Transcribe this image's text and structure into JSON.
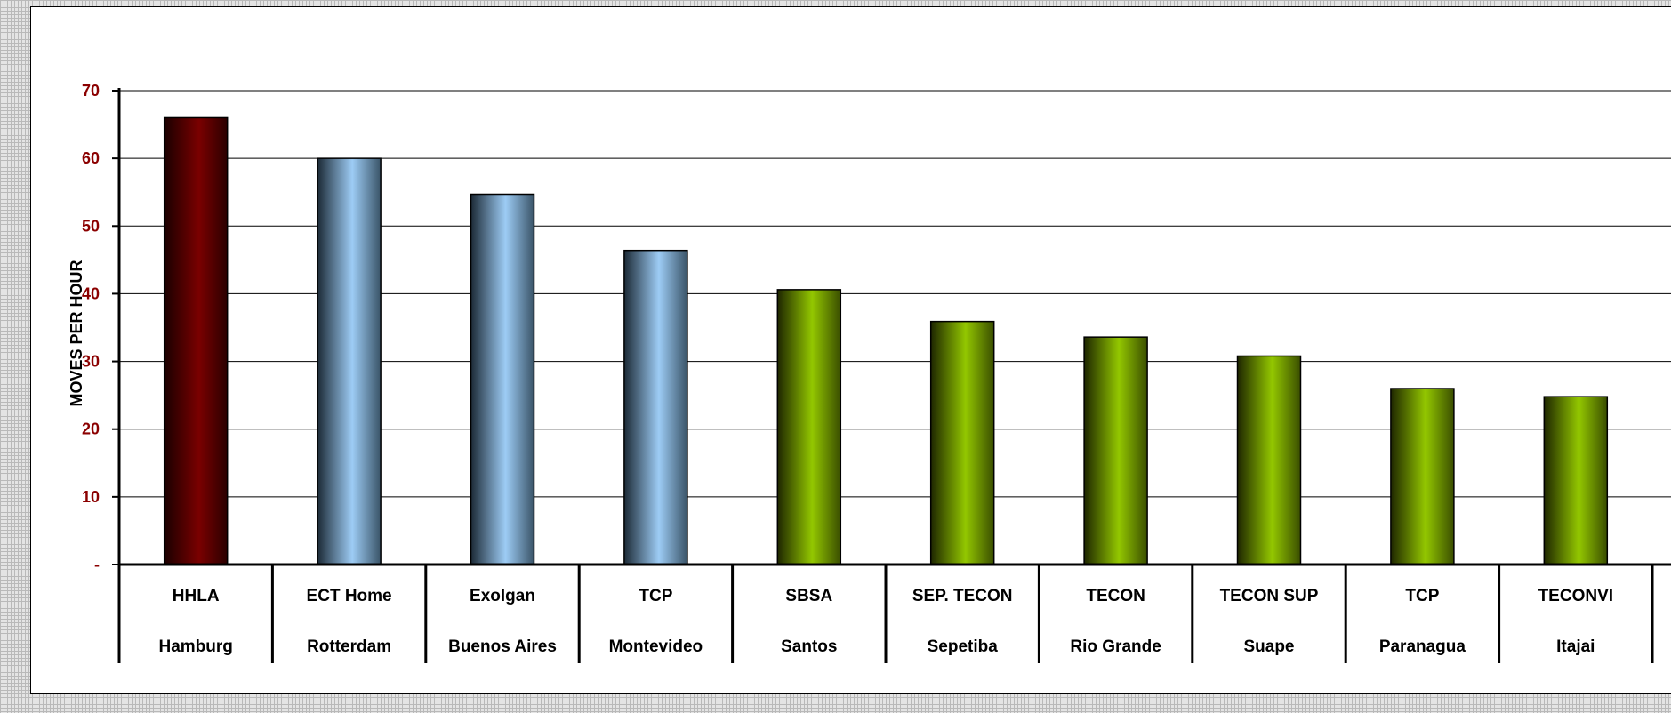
{
  "chart_data": {
    "type": "bar",
    "title": "",
    "xlabel": "",
    "ylabel": "MOVES PER HOUR",
    "ylim": [
      0,
      70
    ],
    "yticks": [
      0,
      10,
      20,
      30,
      40,
      50,
      60,
      70
    ],
    "ytick_labels": [
      "-",
      "10",
      "20",
      "30",
      "40",
      "50",
      "60",
      "70"
    ],
    "grid": true,
    "legend": "none",
    "categories": [
      [
        "HHLA",
        "Hamburg"
      ],
      [
        "ECT Home",
        "Rotterdam"
      ],
      [
        "Exolgan",
        "Buenos Aires"
      ],
      [
        "TCP",
        "Montevideo"
      ],
      [
        "SBSA",
        "Santos"
      ],
      [
        "SEP. TECON",
        "Sepetiba"
      ],
      [
        "TECON",
        "Rio Grande"
      ],
      [
        "TECON SUP",
        "Suape"
      ],
      [
        "TCP",
        "Paranagua"
      ],
      [
        "TECONVI",
        "Itajai"
      ]
    ],
    "values": [
      66,
      60,
      54.7,
      46.4,
      40.6,
      35.9,
      33.6,
      30.8,
      26,
      24.8
    ],
    "bar_groups": [
      "dark-red",
      "light-blue",
      "light-blue",
      "light-blue",
      "green",
      "green",
      "green",
      "green",
      "green",
      "green"
    ]
  },
  "colors": {
    "dark-red": "#7a0000",
    "light-blue": "#9dccf5",
    "green": "#93c700",
    "tick_label": "#8b0000",
    "grid": "#000000"
  }
}
